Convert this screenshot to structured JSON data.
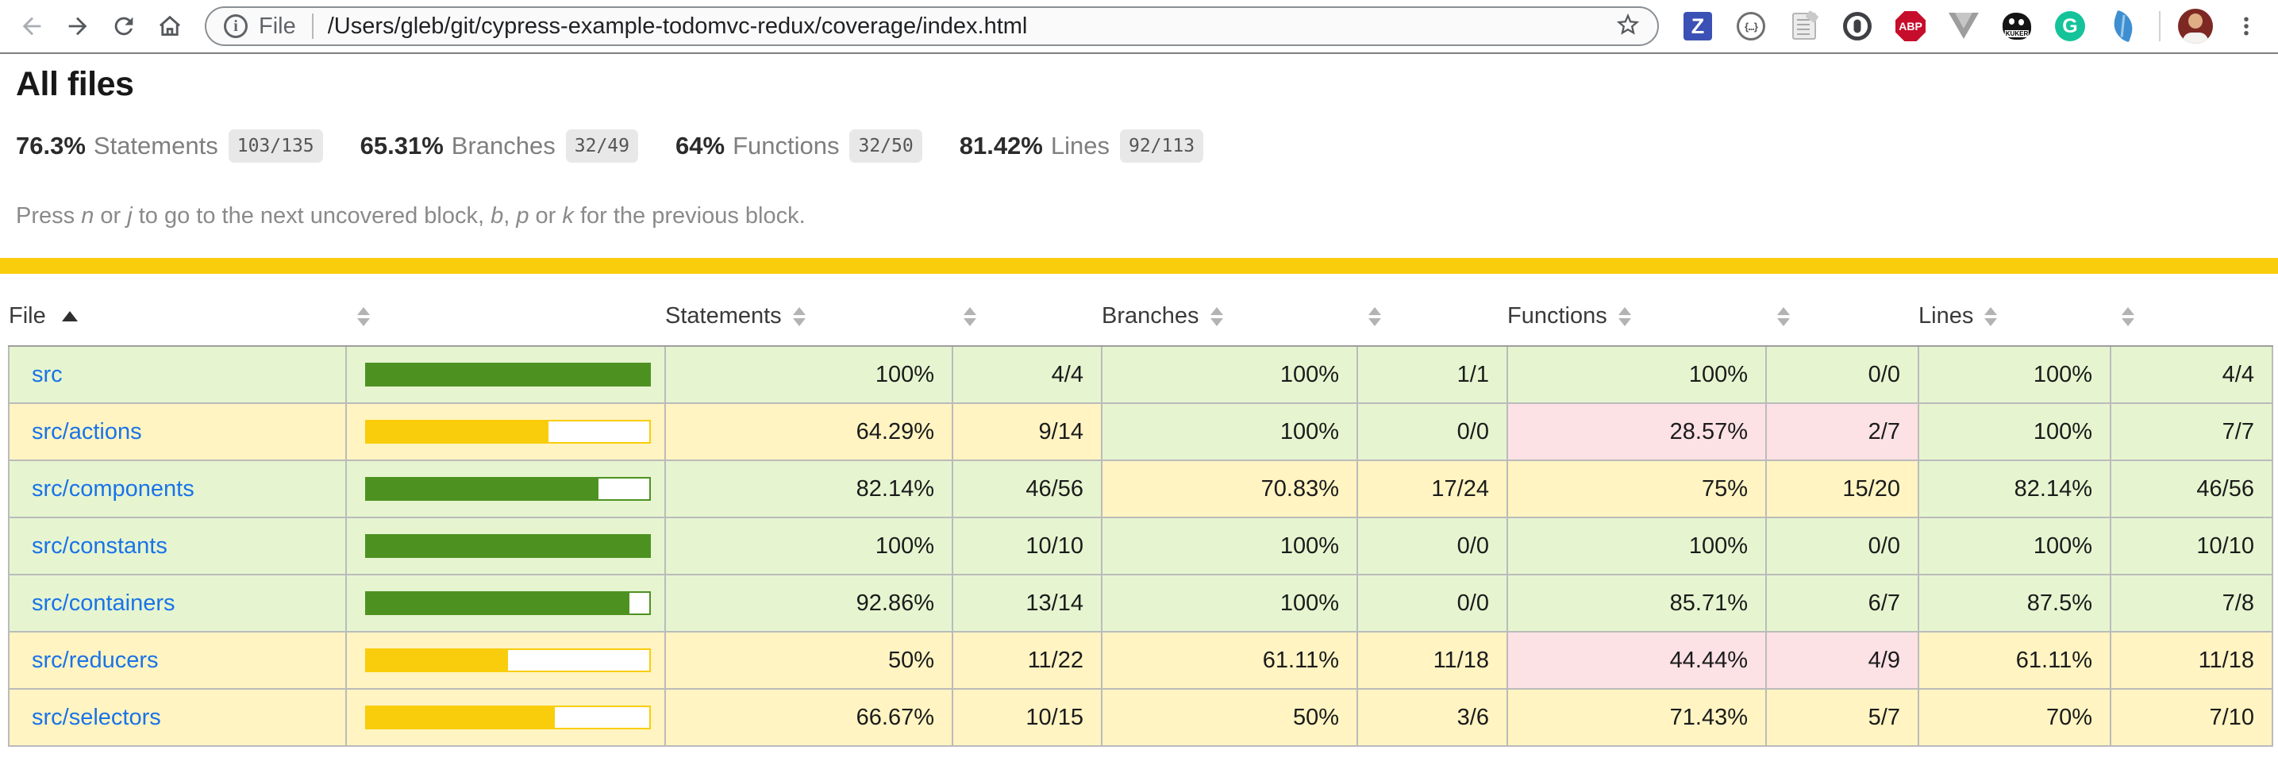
{
  "browser": {
    "scheme_label": "File",
    "url": "/Users/gleb/git/cypress-example-todomvc-redux/coverage/index.html",
    "extensions": [
      {
        "name": "zenhub-z-icon",
        "label": "Z"
      },
      {
        "name": "json-viewer-icon",
        "label": "{...}"
      },
      {
        "name": "scroll-notes-icon",
        "label": ""
      },
      {
        "name": "onepassword-icon",
        "label": ""
      },
      {
        "name": "adblock-plus-icon",
        "label": "ABP"
      },
      {
        "name": "vue-devtools-icon",
        "label": ""
      },
      {
        "name": "kuker-icon",
        "label": "KUKER"
      },
      {
        "name": "grammarly-icon",
        "label": "G"
      },
      {
        "name": "feather-icon",
        "label": ""
      }
    ]
  },
  "page": {
    "title": "All files",
    "stats": [
      {
        "pct": "76.3%",
        "label": "Statements",
        "fraction": "103/135"
      },
      {
        "pct": "65.31%",
        "label": "Branches",
        "fraction": "32/49"
      },
      {
        "pct": "64%",
        "label": "Functions",
        "fraction": "32/50"
      },
      {
        "pct": "81.42%",
        "label": "Lines",
        "fraction": "92/113"
      }
    ],
    "hint_parts": [
      {
        "text": "Press "
      },
      {
        "text": "n",
        "italic": true
      },
      {
        "text": " or "
      },
      {
        "text": "j",
        "italic": true
      },
      {
        "text": " to go to the next uncovered block, "
      },
      {
        "text": "b",
        "italic": true
      },
      {
        "text": ", "
      },
      {
        "text": "p",
        "italic": true
      },
      {
        "text": " or "
      },
      {
        "text": "k",
        "italic": true
      },
      {
        "text": " for the previous block."
      }
    ]
  },
  "table": {
    "headers": [
      "File",
      "Statements",
      "Branches",
      "Functions",
      "Lines"
    ],
    "sort_column": "File",
    "sort_direction": "asc",
    "rows": [
      {
        "file": "src",
        "level": "high",
        "bar_pct": 100,
        "statements": {
          "pct": "100%",
          "fraction": "4/4",
          "level": "high"
        },
        "branches": {
          "pct": "100%",
          "fraction": "1/1",
          "level": "high"
        },
        "functions": {
          "pct": "100%",
          "fraction": "0/0",
          "level": "high"
        },
        "lines": {
          "pct": "100%",
          "fraction": "4/4",
          "level": "high"
        }
      },
      {
        "file": "src/actions",
        "level": "medium",
        "bar_pct": 64.29,
        "statements": {
          "pct": "64.29%",
          "fraction": "9/14",
          "level": "medium"
        },
        "branches": {
          "pct": "100%",
          "fraction": "0/0",
          "level": "high"
        },
        "functions": {
          "pct": "28.57%",
          "fraction": "2/7",
          "level": "low"
        },
        "lines": {
          "pct": "100%",
          "fraction": "7/7",
          "level": "high"
        }
      },
      {
        "file": "src/components",
        "level": "high",
        "bar_pct": 82.14,
        "statements": {
          "pct": "82.14%",
          "fraction": "46/56",
          "level": "high"
        },
        "branches": {
          "pct": "70.83%",
          "fraction": "17/24",
          "level": "medium"
        },
        "functions": {
          "pct": "75%",
          "fraction": "15/20",
          "level": "medium"
        },
        "lines": {
          "pct": "82.14%",
          "fraction": "46/56",
          "level": "high"
        }
      },
      {
        "file": "src/constants",
        "level": "high",
        "bar_pct": 100,
        "statements": {
          "pct": "100%",
          "fraction": "10/10",
          "level": "high"
        },
        "branches": {
          "pct": "100%",
          "fraction": "0/0",
          "level": "high"
        },
        "functions": {
          "pct": "100%",
          "fraction": "0/0",
          "level": "high"
        },
        "lines": {
          "pct": "100%",
          "fraction": "10/10",
          "level": "high"
        }
      },
      {
        "file": "src/containers",
        "level": "high",
        "bar_pct": 92.86,
        "statements": {
          "pct": "92.86%",
          "fraction": "13/14",
          "level": "high"
        },
        "branches": {
          "pct": "100%",
          "fraction": "0/0",
          "level": "high"
        },
        "functions": {
          "pct": "85.71%",
          "fraction": "6/7",
          "level": "high"
        },
        "lines": {
          "pct": "87.5%",
          "fraction": "7/8",
          "level": "high"
        }
      },
      {
        "file": "src/reducers",
        "level": "medium",
        "bar_pct": 50,
        "statements": {
          "pct": "50%",
          "fraction": "11/22",
          "level": "medium"
        },
        "branches": {
          "pct": "61.11%",
          "fraction": "11/18",
          "level": "medium"
        },
        "functions": {
          "pct": "44.44%",
          "fraction": "4/9",
          "level": "low"
        },
        "lines": {
          "pct": "61.11%",
          "fraction": "11/18",
          "level": "medium"
        }
      },
      {
        "file": "src/selectors",
        "level": "medium",
        "bar_pct": 66.67,
        "statements": {
          "pct": "66.67%",
          "fraction": "10/15",
          "level": "medium"
        },
        "branches": {
          "pct": "50%",
          "fraction": "3/6",
          "level": "medium"
        },
        "functions": {
          "pct": "71.43%",
          "fraction": "5/7",
          "level": "medium"
        },
        "lines": {
          "pct": "70%",
          "fraction": "7/10",
          "level": "medium"
        }
      }
    ]
  },
  "colors": {
    "status_bar": "#F9CD0B",
    "high_bg": "#E6F5D0",
    "medium_bg": "#FFF4C2",
    "low_bg": "#FCE1E5",
    "high_fill": "#4D9221",
    "medium_fill": "#F9CD0B",
    "low_fill": "#C21F39",
    "link": "#1A73E8"
  }
}
